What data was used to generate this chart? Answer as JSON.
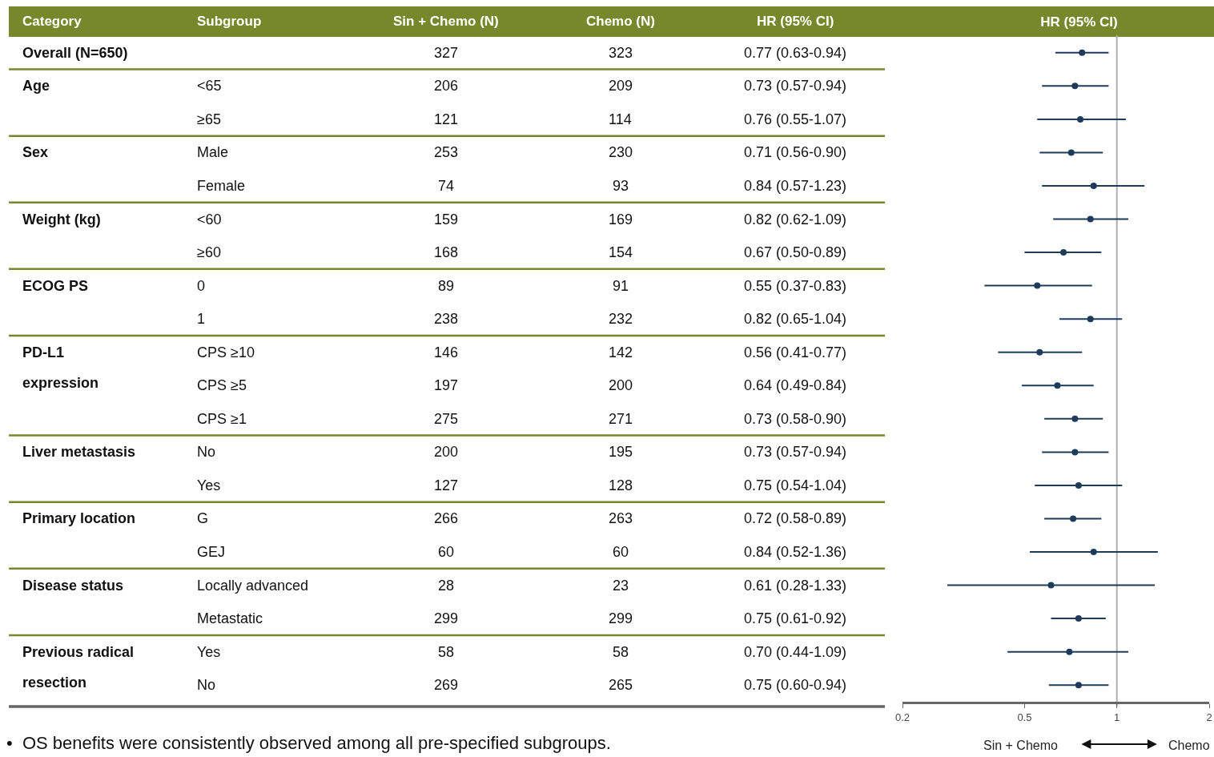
{
  "chart_data": [
    {
      "type": "other",
      "categories": [
        "Category",
        "Subgroup",
        "Sin + Chemo (N)",
        "Chemo (N)",
        "HR (95% CI)"
      ],
      "cell_labels": [
        [
          "Overall (N=650)",
          null,
          "327",
          "323",
          "0.77 (0.63-0.94)"
        ],
        [
          "Age",
          "<65",
          "206",
          "209",
          "0.73 (0.57-0.94)"
        ],
        [
          null,
          "≥65",
          "121",
          "114",
          "0.76 (0.55-1.07)"
        ],
        [
          "Sex",
          "Male",
          "253",
          "230",
          "0.71 (0.56-0.90)"
        ],
        [
          null,
          "Female",
          "74",
          "93",
          "0.84 (0.57-1.23)"
        ],
        [
          "Weight (kg)",
          "<60",
          "159",
          "169",
          "0.82 (0.62-1.09)"
        ],
        [
          null,
          "≥60",
          "168",
          "154",
          "0.67 (0.50-0.89)"
        ],
        [
          "ECOG PS",
          "0",
          "89",
          "91",
          "0.55 (0.37-0.83)"
        ],
        [
          null,
          "1",
          "238",
          "232",
          "0.82 (0.65-1.04)"
        ],
        [
          "PD-L1\nexpression",
          "CPS ≥10",
          "146",
          "142",
          "0.56 (0.41-0.77)"
        ],
        [
          null,
          "CPS ≥5",
          "197",
          "200",
          "0.64 (0.49-0.84)"
        ],
        [
          null,
          "CPS ≥1",
          "275",
          "271",
          "0.73 (0.58-0.90)"
        ],
        [
          "Liver metastasis",
          "No",
          "200",
          "195",
          "0.73 (0.57-0.94)"
        ],
        [
          null,
          "Yes",
          "127",
          "128",
          "0.75 (0.54-1.04)"
        ],
        [
          "Primary location",
          "G",
          "266",
          "263",
          "0.72 (0.58-0.89)"
        ],
        [
          null,
          "GEJ",
          "60",
          "60",
          "0.84 (0.52-1.36)"
        ],
        [
          "Disease status",
          "Locally advanced",
          "28",
          "23",
          "0.61 (0.28-1.33)"
        ],
        [
          null,
          "Metastatic",
          "299",
          "299",
          "0.75 (0.61-0.92)"
        ],
        [
          "Previous radical\nresection",
          "Yes",
          "58",
          "58",
          "0.70 (0.44-1.09)"
        ],
        [
          null,
          "No",
          "269",
          "265",
          "0.75 (0.60-0.94)"
        ]
      ],
      "annotations": [
        "•  OS benefits were consistently observed among all pre-specified subgroups."
      ]
    },
    {
      "type": "scatter",
      "title": "HR (95% CI)",
      "orientation": "horizontal",
      "log": "x",
      "marker": "circle",
      "color": "#1f3b5c",
      "categories": [
        null,
        null,
        null,
        null,
        null,
        null,
        null,
        null,
        null,
        null,
        null,
        null,
        null,
        null,
        null,
        null,
        null,
        null,
        null,
        null
      ],
      "values": [
        0.77,
        0.73,
        0.76,
        0.71,
        0.84,
        0.82,
        0.67,
        0.55,
        0.82,
        0.56,
        0.64,
        0.73,
        0.73,
        0.75,
        0.72,
        0.84,
        0.61,
        0.75,
        0.7,
        0.75
      ],
      "errors": [
        [
          0.63,
          0.94
        ],
        [
          0.57,
          0.94
        ],
        [
          0.55,
          1.07
        ],
        [
          0.56,
          0.9
        ],
        [
          0.57,
          1.23
        ],
        [
          0.62,
          1.09
        ],
        [
          0.5,
          0.89
        ],
        [
          0.37,
          0.83
        ],
        [
          0.65,
          1.04
        ],
        [
          0.41,
          0.77
        ],
        [
          0.49,
          0.84
        ],
        [
          0.58,
          0.9
        ],
        [
          0.57,
          0.94
        ],
        [
          0.54,
          1.04
        ],
        [
          0.58,
          0.89
        ],
        [
          0.52,
          1.36
        ],
        [
          0.28,
          1.33
        ],
        [
          0.61,
          0.92
        ],
        [
          0.44,
          1.09
        ],
        [
          0.6,
          0.94
        ]
      ],
      "xlim": [
        0.2,
        2
      ],
      "xticks": [
        {
          "value": 0.2,
          "label": "0.2"
        },
        {
          "value": 0.5,
          "label": "0.5"
        },
        1,
        2
      ],
      "ref_lines": [
        {
          "axis": "x",
          "value": 1,
          "color": "#b0b0b0"
        }
      ],
      "annotations": [
        "Sin + Chemo",
        "Chemo"
      ]
    }
  ]
}
